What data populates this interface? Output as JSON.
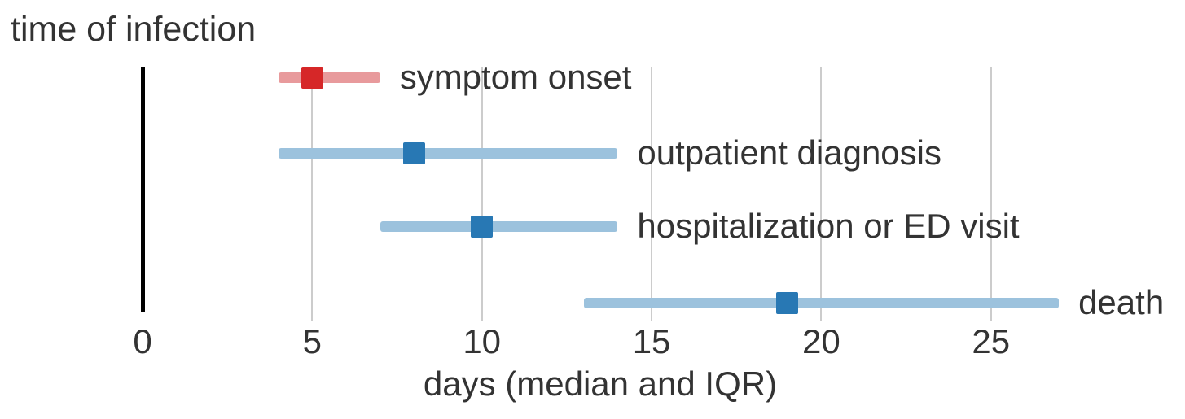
{
  "chart_data": {
    "type": "scatter",
    "title": "time of infection",
    "xlabel": "days (median and IQR)",
    "xlim": [
      0,
      27.5
    ],
    "xticks": [
      0,
      5,
      10,
      15,
      20,
      25
    ],
    "grid": true,
    "zero_line_x": 0,
    "legend_position": "none",
    "series": [
      {
        "label": "symptom onset",
        "median": 5,
        "iqr_low": 4,
        "iqr_high": 7,
        "marker_color": "#d62728",
        "band_color": "#e89a9c"
      },
      {
        "label": "outpatient diagnosis",
        "median": 8,
        "iqr_low": 4,
        "iqr_high": 14,
        "marker_color": "#2878b4",
        "band_color": "#9cc2dd"
      },
      {
        "label": "hospitalization or ED visit",
        "median": 10,
        "iqr_low": 7,
        "iqr_high": 14,
        "marker_color": "#2878b4",
        "band_color": "#9cc2dd"
      },
      {
        "label": "death",
        "median": 19,
        "iqr_low": 13,
        "iqr_high": 27,
        "marker_color": "#2878b4",
        "band_color": "#9cc2dd"
      }
    ],
    "colors": {
      "text": "#333333",
      "gridline": "#cccccc",
      "zero_line": "#000000"
    }
  }
}
